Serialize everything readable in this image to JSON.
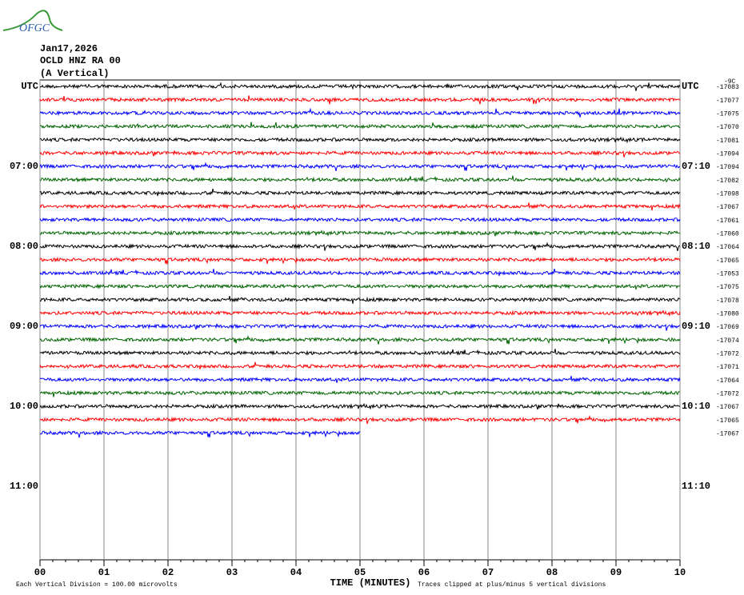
{
  "logo": "OFGC",
  "chart_data": {
    "type": "helicorder",
    "title_lines": [
      "Jan17,2026",
      "OCLD HNZ RA 00",
      "(A Vertical)"
    ],
    "scale_note": "-9C",
    "xlabel": "TIME (MINUTES)",
    "footnote_left": "Each Vertical Division =  100.00 microvolts",
    "footnote_right": "Traces clipped at plus/minus 5 vertical divisions",
    "xlim": [
      0,
      10
    ],
    "xticks": [
      {
        "value": 0,
        "label": "00"
      },
      {
        "value": 1,
        "label": "01"
      },
      {
        "value": 2,
        "label": "02"
      },
      {
        "value": 3,
        "label": "03"
      },
      {
        "value": 4,
        "label": "04"
      },
      {
        "value": 5,
        "label": "05"
      },
      {
        "value": 6,
        "label": "06"
      },
      {
        "value": 7,
        "label": "07"
      },
      {
        "value": 8,
        "label": "08"
      },
      {
        "value": 9,
        "label": "09"
      },
      {
        "value": 10,
        "label": "10"
      }
    ],
    "left_labels": [
      "UTC",
      null,
      null,
      null,
      null,
      null,
      "07:00",
      null,
      null,
      null,
      null,
      null,
      "08:00",
      null,
      null,
      null,
      null,
      null,
      "09:00",
      null,
      null,
      null,
      null,
      null,
      "10:00",
      null,
      null,
      null,
      null,
      null,
      "11:00",
      null,
      null,
      null,
      null,
      null
    ],
    "right_labels": [
      "UTC",
      null,
      null,
      null,
      null,
      null,
      "07:10",
      null,
      null,
      null,
      null,
      null,
      "08:10",
      null,
      null,
      null,
      null,
      null,
      "09:10",
      null,
      null,
      null,
      null,
      null,
      "10:10",
      null,
      null,
      null,
      null,
      null,
      "11:10",
      null,
      null,
      null,
      null,
      null
    ],
    "trace_offsets": [
      -17083,
      -17077,
      -17075,
      -17070,
      -17081,
      -17094,
      -17094,
      -17082,
      -17098,
      -17067,
      -17061,
      -17060,
      -17064,
      -17065,
      -17053,
      -17075,
      -17078,
      -17080,
      -17069,
      -17074,
      -17072,
      -17071,
      -17064,
      -17072,
      -17067,
      -17065,
      -17067
    ],
    "trace_colors": [
      "#000000",
      "#ff0000",
      "#0000ff",
      "#006400"
    ],
    "last_trace_end": 5,
    "grid": true
  }
}
